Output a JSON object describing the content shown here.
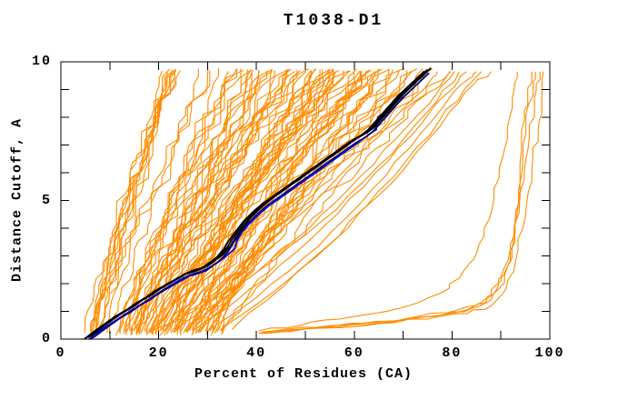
{
  "chart_data": {
    "type": "line",
    "title": "T1038-D1",
    "xlabel": "Percent of Residues (CA)",
    "ylabel": "Distance Cutoff, A",
    "xlim": [
      0,
      100
    ],
    "ylim": [
      0,
      10
    ],
    "x_ticks": {
      "step": 10,
      "labeled": [
        0,
        20,
        40,
        60,
        80,
        100
      ]
    },
    "y_ticks": {
      "step": 1,
      "labeled": [
        0,
        5,
        10
      ]
    },
    "grid": false,
    "legend": "none",
    "tick_style": "inward-mirrored-box",
    "colors": {
      "predictions": "#ff8c00",
      "best_black": "#000000",
      "best_navy": "#000080",
      "best_blue": "#0000e8",
      "frame": "#000000",
      "text": "#000000",
      "background": "#ffffff"
    },
    "series": [
      {
        "name": "server-predictions-band",
        "role": "band",
        "color_key": "predictions",
        "count": 88,
        "gen": {
          "seed": 12,
          "start_min": 4.2,
          "start_max": 33,
          "end_base": 20,
          "end_slope": 1.95,
          "end_jitter": 6,
          "end_min": 21,
          "end_max": 79,
          "bottom_value": 0.2,
          "top_value": 9.65,
          "steps": 34,
          "jitter": 2.2
        }
      },
      {
        "name": "late-start-outliers",
        "role": "polylines",
        "color_key": "predictions",
        "wiggle": 0.5,
        "seed": 5,
        "width": 1.1,
        "curves": [
          [
            [
              18,
              0.25
            ],
            [
              26,
              0.9
            ],
            [
              35,
              1.8
            ],
            [
              44,
              2.9
            ],
            [
              53,
              4.2
            ],
            [
              62,
              5.7
            ],
            [
              70,
              7.2
            ],
            [
              77,
              8.6
            ],
            [
              81.5,
              9.65
            ]
          ],
          [
            [
              20,
              0.3
            ],
            [
              27,
              1.1
            ],
            [
              34,
              2.1
            ],
            [
              41,
              3.2
            ],
            [
              49,
              4.5
            ],
            [
              57,
              5.9
            ],
            [
              65,
              7.3
            ],
            [
              71,
              8.5
            ],
            [
              75.5,
              9.3
            ],
            [
              77,
              9.65
            ]
          ],
          [
            [
              23,
              0.28
            ],
            [
              32,
              1.3
            ],
            [
              40,
              2.4
            ],
            [
              48,
              3.6
            ],
            [
              56,
              4.9
            ],
            [
              64,
              6.3
            ],
            [
              71,
              7.7
            ],
            [
              77,
              8.9
            ],
            [
              80.5,
              9.65
            ]
          ],
          [
            [
              27,
              0.3
            ],
            [
              36,
              1.4
            ],
            [
              45,
              2.7
            ],
            [
              54,
              4.1
            ],
            [
              62,
              5.5
            ],
            [
              69,
              6.9
            ],
            [
              75.5,
              8.2
            ],
            [
              80.5,
              9.1
            ],
            [
              83,
              9.65
            ]
          ],
          [
            [
              30,
              0.3
            ],
            [
              40,
              1.5
            ],
            [
              49.5,
              2.9
            ],
            [
              58.5,
              4.4
            ],
            [
              66.5,
              5.9
            ],
            [
              73.5,
              7.4
            ],
            [
              79.5,
              8.7
            ],
            [
              83.5,
              9.4
            ],
            [
              85,
              9.65
            ]
          ],
          [
            [
              32.5,
              0.32
            ],
            [
              43.5,
              1.7
            ],
            [
              53.5,
              3.2
            ],
            [
              62.5,
              4.8
            ],
            [
              70.5,
              6.4
            ],
            [
              77.5,
              7.9
            ],
            [
              82.5,
              9.0
            ],
            [
              86,
              9.65
            ]
          ],
          [
            [
              35,
              0.35
            ],
            [
              45.5,
              1.9
            ],
            [
              55.5,
              3.5
            ],
            [
              64.5,
              5.1
            ],
            [
              72.5,
              6.7
            ],
            [
              79.5,
              8.2
            ],
            [
              84.5,
              9.2
            ],
            [
              88,
              9.65
            ]
          ]
        ]
      },
      {
        "name": "high-coverage-outliers",
        "role": "polylines",
        "color_key": "predictions",
        "wiggle": 0.7,
        "seed": 9,
        "width": 1.1,
        "curves": [
          [
            [
              40.5,
              0.22
            ],
            [
              48,
              0.35
            ],
            [
              56,
              0.48
            ],
            [
              64,
              0.6
            ],
            [
              72,
              0.75
            ],
            [
              79,
              0.92
            ],
            [
              84,
              1.1
            ],
            [
              87,
              1.35
            ],
            [
              89,
              1.75
            ],
            [
              90.5,
              2.3
            ],
            [
              91.7,
              3.1
            ],
            [
              92.7,
              4.2
            ],
            [
              93.5,
              5.5
            ],
            [
              94.2,
              6.8
            ],
            [
              94.8,
              7.9
            ],
            [
              95.3,
              8.8
            ],
            [
              95.8,
              9.4
            ],
            [
              96.1,
              9.65
            ]
          ],
          [
            [
              40.8,
              0.2
            ],
            [
              50,
              0.36
            ],
            [
              60,
              0.52
            ],
            [
              69,
              0.68
            ],
            [
              77,
              0.85
            ],
            [
              83,
              1.05
            ],
            [
              87,
              1.3
            ],
            [
              89.8,
              1.85
            ],
            [
              91.3,
              2.6
            ],
            [
              92.6,
              3.6
            ],
            [
              93.6,
              4.9
            ],
            [
              94.4,
              6.2
            ],
            [
              95.1,
              7.4
            ],
            [
              95.7,
              8.5
            ],
            [
              96.3,
              9.3
            ],
            [
              96.7,
              9.65
            ]
          ],
          [
            [
              41,
              0.25
            ],
            [
              52,
              0.42
            ],
            [
              62,
              0.58
            ],
            [
              71,
              0.75
            ],
            [
              79,
              0.95
            ],
            [
              84.5,
              1.2
            ],
            [
              88,
              1.55
            ],
            [
              90,
              2.1
            ],
            [
              91.5,
              2.85
            ],
            [
              92.7,
              3.8
            ],
            [
              93.8,
              4.9
            ],
            [
              94.8,
              6.1
            ],
            [
              95.8,
              7.3
            ],
            [
              96.6,
              8.4
            ],
            [
              97.2,
              9.2
            ],
            [
              97.6,
              9.65
            ]
          ],
          [
            [
              41.5,
              0.2
            ],
            [
              54,
              0.4
            ],
            [
              65,
              0.56
            ],
            [
              75,
              0.72
            ],
            [
              83,
              0.92
            ],
            [
              88,
              1.2
            ],
            [
              91,
              1.8
            ],
            [
              93,
              2.8
            ],
            [
              94.5,
              4.0
            ],
            [
              95.6,
              5.3
            ],
            [
              96.5,
              6.5
            ],
            [
              97.2,
              7.5
            ],
            [
              97.9,
              8.5
            ],
            [
              98.3,
              9.2
            ],
            [
              98.6,
              9.65
            ]
          ],
          [
            [
              40.5,
              0.3
            ],
            [
              49,
              0.5
            ],
            [
              57,
              0.72
            ],
            [
              65,
              0.95
            ],
            [
              72,
              1.25
            ],
            [
              77.5,
              1.65
            ],
            [
              81.5,
              2.2
            ],
            [
              84.5,
              2.9
            ],
            [
              86.5,
              3.7
            ],
            [
              88.2,
              4.7
            ],
            [
              89.6,
              5.8
            ],
            [
              90.8,
              6.9
            ],
            [
              91.8,
              8.0
            ],
            [
              92.7,
              9.0
            ],
            [
              93.3,
              9.65
            ]
          ]
        ]
      },
      {
        "name": "best-model-bundle",
        "role": "bundle",
        "width": 1.8,
        "waypoints": [
          [
            5.5,
            0.05
          ],
          [
            6.5,
            0.2
          ],
          [
            8,
            0.4
          ],
          [
            10,
            0.65
          ],
          [
            12,
            0.9
          ],
          [
            14,
            1.1
          ],
          [
            16,
            1.35
          ],
          [
            18,
            1.55
          ],
          [
            20,
            1.8
          ],
          [
            22,
            2.0
          ],
          [
            24,
            2.2
          ],
          [
            26,
            2.4
          ],
          [
            28,
            2.5
          ],
          [
            29.5,
            2.6
          ],
          [
            31,
            2.8
          ],
          [
            32.5,
            3.0
          ],
          [
            34,
            3.3
          ],
          [
            35,
            3.6
          ],
          [
            36.5,
            3.95
          ],
          [
            38,
            4.3
          ],
          [
            40,
            4.65
          ],
          [
            42,
            4.95
          ],
          [
            44,
            5.2
          ],
          [
            46,
            5.45
          ],
          [
            48,
            5.7
          ],
          [
            50,
            5.95
          ],
          [
            52,
            6.2
          ],
          [
            54,
            6.45
          ],
          [
            56,
            6.7
          ],
          [
            58,
            6.95
          ],
          [
            60,
            7.2
          ],
          [
            62,
            7.4
          ],
          [
            63.5,
            7.6
          ],
          [
            65,
            7.9
          ],
          [
            66.5,
            8.2
          ],
          [
            68,
            8.5
          ],
          [
            69.5,
            8.8
          ],
          [
            71,
            9.05
          ],
          [
            72.5,
            9.3
          ],
          [
            74,
            9.55
          ],
          [
            75,
            9.72
          ]
        ],
        "strands": [
          {
            "color_key": "best_black",
            "dx": 0,
            "dy": 0
          },
          {
            "color_key": "best_black",
            "dx": 0.7,
            "dy": 0.06
          },
          {
            "color_key": "best_black",
            "dx": -0.7,
            "dy": -0.06
          },
          {
            "color_key": "best_navy",
            "dx": 0.3,
            "dy": -0.12
          }
        ]
      },
      {
        "name": "best-model-blue",
        "role": "polylines",
        "color_key": "best_blue",
        "wiggle": 0,
        "seed": 3,
        "width": 1.7,
        "curves": [
          [
            [
              6,
              0.05
            ],
            [
              7,
              0.18
            ],
            [
              9,
              0.42
            ],
            [
              11,
              0.65
            ],
            [
              13,
              0.88
            ],
            [
              15,
              1.1
            ],
            [
              17,
              1.32
            ],
            [
              19,
              1.55
            ],
            [
              21,
              1.78
            ],
            [
              23,
              2.0
            ],
            [
              25,
              2.2
            ],
            [
              27,
              2.35
            ],
            [
              29,
              2.45
            ],
            [
              30.5,
              2.6
            ],
            [
              32,
              2.75
            ],
            [
              33.5,
              2.95
            ],
            [
              34.5,
              3.1
            ],
            [
              35.5,
              3.25
            ],
            [
              36,
              3.55
            ],
            [
              37,
              3.85
            ],
            [
              38.5,
              4.15
            ],
            [
              40.5,
              4.5
            ],
            [
              42.5,
              4.8
            ],
            [
              44.5,
              5.05
            ],
            [
              46.5,
              5.3
            ],
            [
              48.5,
              5.55
            ],
            [
              50.5,
              5.8
            ],
            [
              52.5,
              6.05
            ],
            [
              54.5,
              6.3
            ],
            [
              56.5,
              6.55
            ],
            [
              58.5,
              6.8
            ],
            [
              60.5,
              7.05
            ],
            [
              62,
              7.25
            ],
            [
              63.5,
              7.45
            ],
            [
              64.5,
              7.55
            ],
            [
              64.8,
              8.0
            ],
            [
              66,
              8.15
            ],
            [
              67.5,
              8.45
            ],
            [
              69,
              8.75
            ],
            [
              70.5,
              9.0
            ],
            [
              72,
              9.25
            ],
            [
              73.5,
              9.5
            ],
            [
              74.7,
              9.68
            ]
          ]
        ]
      }
    ]
  }
}
